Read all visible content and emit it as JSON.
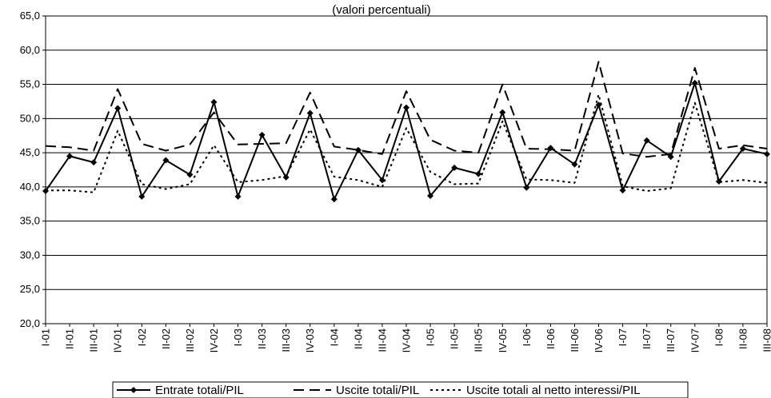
{
  "chart_data": {
    "type": "line",
    "subtitle": "(valori percentuali)",
    "ylim": [
      20,
      65
    ],
    "y_tick_step": 5,
    "y_tick_labels": [
      "20,0",
      "25,0",
      "30,0",
      "35,0",
      "40,0",
      "45,0",
      "50,0",
      "55,0",
      "60,0",
      "65,0"
    ],
    "grid": "horizontal",
    "legend_position": "bottom",
    "categories": [
      "I-01",
      "II-01",
      "III-01",
      "IV-01",
      "I-02",
      "II-02",
      "III-02",
      "IV-02",
      "I-03",
      "II-03",
      "III-03",
      "IV-03",
      "I-04",
      "II-04",
      "III-04",
      "IV-04",
      "I-05",
      "II-05",
      "III-05",
      "IV-05",
      "I-06",
      "II-06",
      "III-06",
      "IV-06",
      "I-07",
      "II-07",
      "III-07",
      "IV-07",
      "I-08",
      "II-08",
      "III-08"
    ],
    "series": [
      {
        "name": "Entrate totali/PIL",
        "style": "solid-diamond",
        "color": "#000000",
        "values": [
          39.4,
          44.5,
          43.6,
          51.5,
          38.6,
          43.9,
          41.8,
          52.4,
          38.6,
          47.6,
          41.4,
          50.8,
          38.2,
          45.4,
          41.0,
          51.6,
          38.7,
          42.8,
          41.9,
          50.9,
          39.9,
          45.7,
          43.3,
          52.0,
          39.5,
          46.8,
          44.4,
          55.2,
          40.8,
          45.6,
          44.8
        ]
      },
      {
        "name": "Uscite totali/PIL",
        "style": "long-dash",
        "color": "#000000",
        "values": [
          46.0,
          45.8,
          45.3,
          54.3,
          46.3,
          45.3,
          46.2,
          50.9,
          46.2,
          46.3,
          46.4,
          53.8,
          45.9,
          45.4,
          44.8,
          54.0,
          46.9,
          45.3,
          45.0,
          55.0,
          45.6,
          45.5,
          45.3,
          58.3,
          44.9,
          44.4,
          44.8,
          57.4,
          45.6,
          46.1,
          45.6
        ]
      },
      {
        "name": "Uscite totali al netto interessi/PIL",
        "style": "short-dash",
        "color": "#000000",
        "values": [
          39.5,
          39.5,
          39.2,
          48.2,
          40.4,
          39.7,
          40.4,
          46.1,
          40.7,
          41.0,
          41.6,
          48.4,
          41.5,
          41.0,
          40.0,
          48.6,
          42.2,
          40.4,
          40.5,
          49.6,
          41.1,
          41.0,
          40.6,
          53.5,
          40.1,
          39.4,
          39.8,
          52.3,
          40.7,
          41.0,
          40.6
        ]
      }
    ]
  }
}
